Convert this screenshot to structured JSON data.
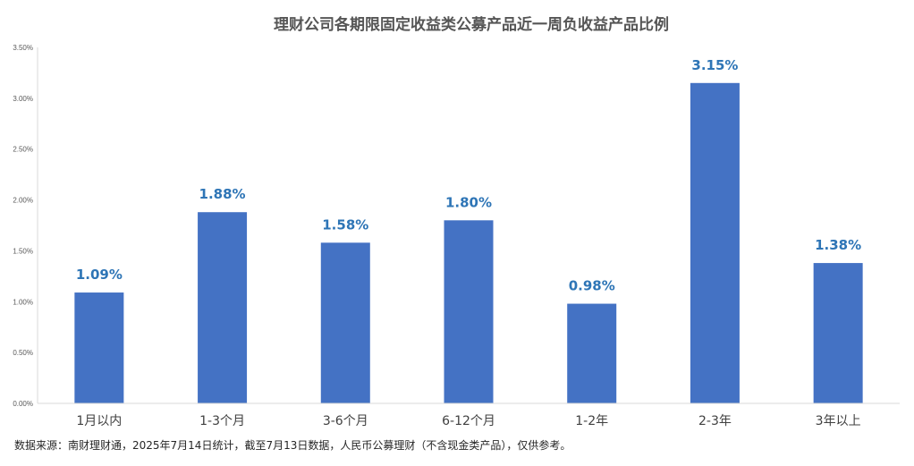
{
  "chart_data": {
    "type": "bar",
    "title": "理财公司各期限固定收益类公募产品近一周负收益产品比例",
    "categories": [
      "1月以内",
      "1-3个月",
      "3-6个月",
      "6-12个月",
      "1-2年",
      "2-3年",
      "3年以上"
    ],
    "values": [
      1.09,
      1.88,
      1.58,
      1.8,
      0.98,
      3.15,
      1.38
    ],
    "data_labels": [
      "1.09%",
      "1.88%",
      "1.58%",
      "1.80%",
      "0.98%",
      "3.15%",
      "1.38%"
    ],
    "ylim": [
      0,
      3.5
    ],
    "yticks": [
      {
        "value": 0,
        "label": "0.00%"
      },
      {
        "value": 0.5,
        "label": "0.50%"
      },
      {
        "value": 1.0,
        "label": "1.00%"
      },
      {
        "value": 1.5,
        "label": "1.50%"
      },
      {
        "value": 2.0,
        "label": "2.00%"
      },
      {
        "value": 2.5,
        "label": "2.50%"
      },
      {
        "value": 3.0,
        "label": "3.00%"
      },
      {
        "value": 3.5,
        "label": "3.50%"
      }
    ],
    "xlabel": "",
    "ylabel": "",
    "grid": false,
    "legend": "none",
    "colors": {
      "bar": "#4472C4",
      "data_label": "#2E75B6",
      "title": "#555555",
      "axis": "#D9D9D9",
      "tick_text": "#595959"
    }
  },
  "footer": {
    "source": "数据来源：南财理财通，2025年7月14日统计，截至7月13日数据，人民币公募理财（不含现金类产品），仅供参考。"
  }
}
